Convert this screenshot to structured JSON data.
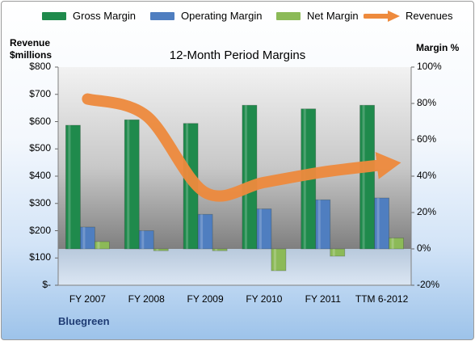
{
  "legend": {
    "gross": "Gross Margin",
    "operating": "Operating Margin",
    "net": "Net Margin",
    "revenues": "Revenues"
  },
  "axis_left_title_line1": "Revenue",
  "axis_left_title_line2": "$millions",
  "axis_right_title": "Margin %",
  "company": "Bluegreen",
  "colors": {
    "gross": "#1f8a4c",
    "operating": "#4f7ec0",
    "net": "#8cba58",
    "revenues": "#ee8a3d"
  },
  "chart_data": {
    "type": "bar",
    "title": "12-Month Period Margins",
    "categories": [
      "FY 2007",
      "FY 2008",
      "FY 2009",
      "FY 2010",
      "FY 2011",
      "TTM 6-2012"
    ],
    "y_left_ticks": [
      "$800",
      "$700",
      "$600",
      "$500",
      "$400",
      "$300",
      "$200",
      "$100",
      "$-"
    ],
    "y_right_ticks": [
      "100%",
      "80%",
      "60%",
      "40%",
      "20%",
      "0%",
      "-20%"
    ],
    "ylim_left": [
      0,
      800
    ],
    "ylim_right": [
      -20,
      100
    ],
    "series": [
      {
        "name": "Gross Margin",
        "axis": "right",
        "values": [
          68,
          71,
          69,
          79,
          77,
          79
        ]
      },
      {
        "name": "Operating Margin",
        "axis": "right",
        "values": [
          12,
          10,
          19,
          22,
          27,
          28
        ]
      },
      {
        "name": "Net Margin",
        "axis": "right",
        "values": [
          4,
          -1,
          -1,
          -12,
          -4,
          6
        ]
      },
      {
        "name": "Revenues",
        "axis": "left",
        "values": [
          683,
          621,
          340,
          377,
          415,
          441
        ]
      }
    ]
  }
}
